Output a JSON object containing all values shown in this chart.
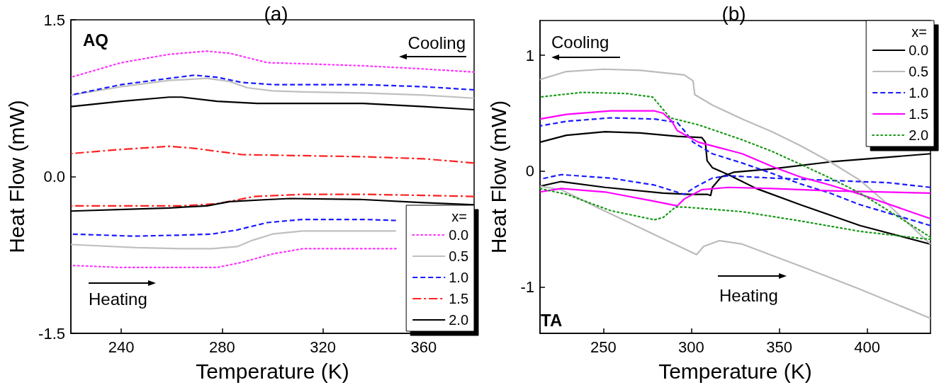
{
  "chart_data": [
    {
      "type": "line",
      "title": "(a)",
      "xlabel": "Temperature (K)",
      "ylabel": "Heat Flow (mW)",
      "legend_title": "x=",
      "legend": "bottom right",
      "grid": false,
      "annotations": [
        "AQ",
        "Cooling",
        "Heating"
      ],
      "xlim": [
        220,
        380
      ],
      "xticks": [
        240,
        280,
        320,
        360
      ],
      "ylim": [
        -1.5,
        1.5
      ],
      "yticks": [
        -1.5,
        {
          "value": 0,
          "label": "0.0"
        },
        1.5
      ],
      "series": [
        {
          "name": "0.0",
          "color": "#ff33ff",
          "line_style": "dotted",
          "x": [
            220,
            240,
            259,
            274,
            283,
            298,
            312,
            336,
            360,
            380
          ],
          "values": [
            0.95,
            1.09,
            1.17,
            1.2,
            1.18,
            1.09,
            1.08,
            1.06,
            1.03,
            1.0
          ]
        },
        {
          "color": "#ff33ff",
          "line_style": "dotted",
          "x": [
            220,
            240,
            264,
            278,
            288,
            300,
            312,
            336,
            349
          ],
          "values": [
            -0.85,
            -0.87,
            -0.87,
            -0.87,
            -0.82,
            -0.74,
            -0.69,
            -0.69,
            -0.69
          ]
        },
        {
          "name": "0.5",
          "color": "#c0c0c0",
          "line_style": "solid",
          "x": [
            220,
            240,
            259,
            274,
            283,
            290,
            300,
            312,
            336,
            360,
            380
          ],
          "values": [
            0.78,
            0.86,
            0.92,
            0.94,
            0.91,
            0.85,
            0.82,
            0.81,
            0.8,
            0.78,
            0.75
          ]
        },
        {
          "color": "#c0c0c0",
          "line_style": "solid",
          "x": [
            220,
            246,
            264,
            276,
            286,
            292,
            300,
            312,
            336,
            349
          ],
          "values": [
            -0.65,
            -0.68,
            -0.69,
            -0.69,
            -0.67,
            -0.61,
            -0.55,
            -0.52,
            -0.52,
            -0.52
          ]
        },
        {
          "name": "1.0",
          "color": "#1a1aff",
          "line_style": "dashed",
          "x": [
            220,
            240,
            259,
            269,
            278,
            288,
            300,
            336,
            360,
            380
          ],
          "values": [
            0.78,
            0.88,
            0.94,
            0.97,
            0.95,
            0.9,
            0.88,
            0.88,
            0.86,
            0.83
          ]
        },
        {
          "color": "#1a1aff",
          "line_style": "dashed",
          "x": [
            220,
            245,
            264,
            276,
            286,
            298,
            312,
            336,
            349
          ],
          "values": [
            -0.55,
            -0.57,
            -0.56,
            -0.55,
            -0.51,
            -0.44,
            -0.41,
            -0.41,
            -0.42
          ]
        },
        {
          "name": "1.5",
          "color": "#ff2020",
          "line_style": "dashdot",
          "x": [
            220,
            240,
            259,
            269,
            288,
            312,
            336,
            360,
            380
          ],
          "values": [
            0.22,
            0.26,
            0.29,
            0.27,
            0.21,
            0.2,
            0.19,
            0.17,
            0.13
          ]
        },
        {
          "color": "#ff2020",
          "line_style": "dashdot",
          "x": [
            220,
            264,
            278,
            293,
            312,
            336,
            360,
            380
          ],
          "values": [
            -0.28,
            -0.28,
            -0.26,
            -0.19,
            -0.17,
            -0.17,
            -0.18,
            -0.19
          ]
        },
        {
          "name": "2.0",
          "color": "#000000",
          "line_style": "solid",
          "x": [
            220,
            240,
            259,
            264,
            278,
            294,
            336,
            360,
            380
          ],
          "values": [
            0.67,
            0.72,
            0.76,
            0.76,
            0.72,
            0.7,
            0.7,
            0.67,
            0.64
          ]
        },
        {
          "color": "#000000",
          "line_style": "solid",
          "x": [
            220,
            259,
            274,
            283,
            298,
            307,
            336,
            360,
            380
          ],
          "values": [
            -0.33,
            -0.3,
            -0.28,
            -0.24,
            -0.22,
            -0.21,
            -0.22,
            -0.25,
            -0.27
          ]
        }
      ]
    },
    {
      "type": "line",
      "title": "(b)",
      "xlabel": "Temperature (K)",
      "ylabel": "Heat Flow (mW)",
      "legend_title": "x=",
      "legend": "top right",
      "grid": false,
      "annotations": [
        "TA",
        "Cooling",
        "Heating"
      ],
      "xlim": [
        214,
        436
      ],
      "xticks": [
        250,
        300,
        350,
        400
      ],
      "ylim": [
        -1.4,
        1.3
      ],
      "yticks": [
        -1,
        0,
        1
      ],
      "series": [
        {
          "name": "0.0",
          "color": "#000000",
          "line_style": "solid",
          "x": [
            214,
            229,
            251,
            271,
            292,
            306,
            308,
            309,
            312,
            321,
            337,
            362,
            396,
            436
          ],
          "values": [
            0.25,
            0.31,
            0.34,
            0.33,
            0.3,
            0.29,
            0.25,
            0.09,
            0.03,
            -0.03,
            -0.15,
            -0.29,
            -0.47,
            -0.63
          ]
        },
        {
          "color": "#000000",
          "line_style": "solid",
          "x": [
            214,
            226,
            251,
            284,
            299,
            309,
            311,
            312,
            317,
            324,
            346,
            379,
            436
          ],
          "values": [
            -0.13,
            -0.09,
            -0.14,
            -0.19,
            -0.2,
            -0.2,
            -0.21,
            -0.14,
            -0.05,
            -0.01,
            0.02,
            0.08,
            0.15
          ]
        },
        {
          "name": "0.5",
          "color": "#bbbbbb",
          "line_style": "solid",
          "x": [
            214,
            229,
            250,
            271,
            296,
            301,
            302,
            312,
            329,
            346,
            362,
            379,
            396,
            412,
            436
          ],
          "values": [
            0.79,
            0.86,
            0.88,
            0.87,
            0.83,
            0.78,
            0.66,
            0.57,
            0.45,
            0.34,
            0.22,
            0.08,
            -0.08,
            -0.29,
            -0.63
          ]
        },
        {
          "color": "#bbbbbb",
          "line_style": "solid",
          "x": [
            214,
            226,
            246,
            271,
            296,
            303,
            307,
            316,
            329,
            362,
            396,
            436
          ],
          "values": [
            -0.13,
            -0.16,
            -0.31,
            -0.49,
            -0.67,
            -0.72,
            -0.65,
            -0.6,
            -0.63,
            -0.82,
            -1.02,
            -1.27
          ]
        },
        {
          "name": "1.0",
          "color": "#1a1aff",
          "line_style": "dashed",
          "x": [
            214,
            229,
            254,
            279,
            292,
            296,
            301,
            312,
            329,
            346,
            362,
            379,
            396,
            436
          ],
          "values": [
            0.39,
            0.43,
            0.46,
            0.45,
            0.42,
            0.35,
            0.25,
            0.15,
            0.07,
            -0.02,
            -0.11,
            -0.19,
            -0.29,
            -0.47
          ]
        },
        {
          "color": "#1a1aff",
          "line_style": "dashed",
          "x": [
            214,
            226,
            254,
            279,
            296,
            302,
            312,
            321,
            346,
            379,
            412,
            436
          ],
          "values": [
            -0.07,
            -0.03,
            -0.06,
            -0.12,
            -0.2,
            -0.14,
            -0.06,
            -0.04,
            -0.06,
            -0.08,
            -0.1,
            -0.14
          ]
        },
        {
          "name": "1.5",
          "color": "#ff00ff",
          "line_style": "solid",
          "x": [
            214,
            229,
            254,
            279,
            284,
            289,
            292,
            304,
            329,
            346,
            362,
            379,
            396,
            436
          ],
          "values": [
            0.45,
            0.49,
            0.52,
            0.52,
            0.5,
            0.43,
            0.35,
            0.25,
            0.15,
            0.04,
            -0.05,
            -0.12,
            -0.2,
            -0.41
          ]
        },
        {
          "color": "#ff00ff",
          "line_style": "solid",
          "x": [
            214,
            226,
            251,
            279,
            292,
            296,
            306,
            321,
            346,
            379,
            436
          ],
          "values": [
            -0.18,
            -0.15,
            -0.18,
            -0.26,
            -0.3,
            -0.24,
            -0.16,
            -0.14,
            -0.15,
            -0.17,
            -0.19
          ]
        },
        {
          "name": "2.0",
          "color": "#1a9a1a",
          "line_style": "dotted",
          "x": [
            214,
            238,
            263,
            278,
            283,
            288,
            304,
            329,
            346,
            362,
            379,
            396,
            412,
            436
          ],
          "values": [
            0.64,
            0.68,
            0.67,
            0.64,
            0.55,
            0.46,
            0.4,
            0.27,
            0.17,
            0.06,
            -0.06,
            -0.19,
            -0.34,
            -0.57
          ]
        },
        {
          "color": "#1a9a1a",
          "line_style": "dotted",
          "x": [
            214,
            229,
            254,
            279,
            284,
            291,
            296,
            329,
            362,
            396,
            436
          ],
          "values": [
            -0.15,
            -0.2,
            -0.34,
            -0.42,
            -0.4,
            -0.31,
            -0.31,
            -0.35,
            -0.43,
            -0.52,
            -0.59
          ]
        }
      ]
    }
  ]
}
